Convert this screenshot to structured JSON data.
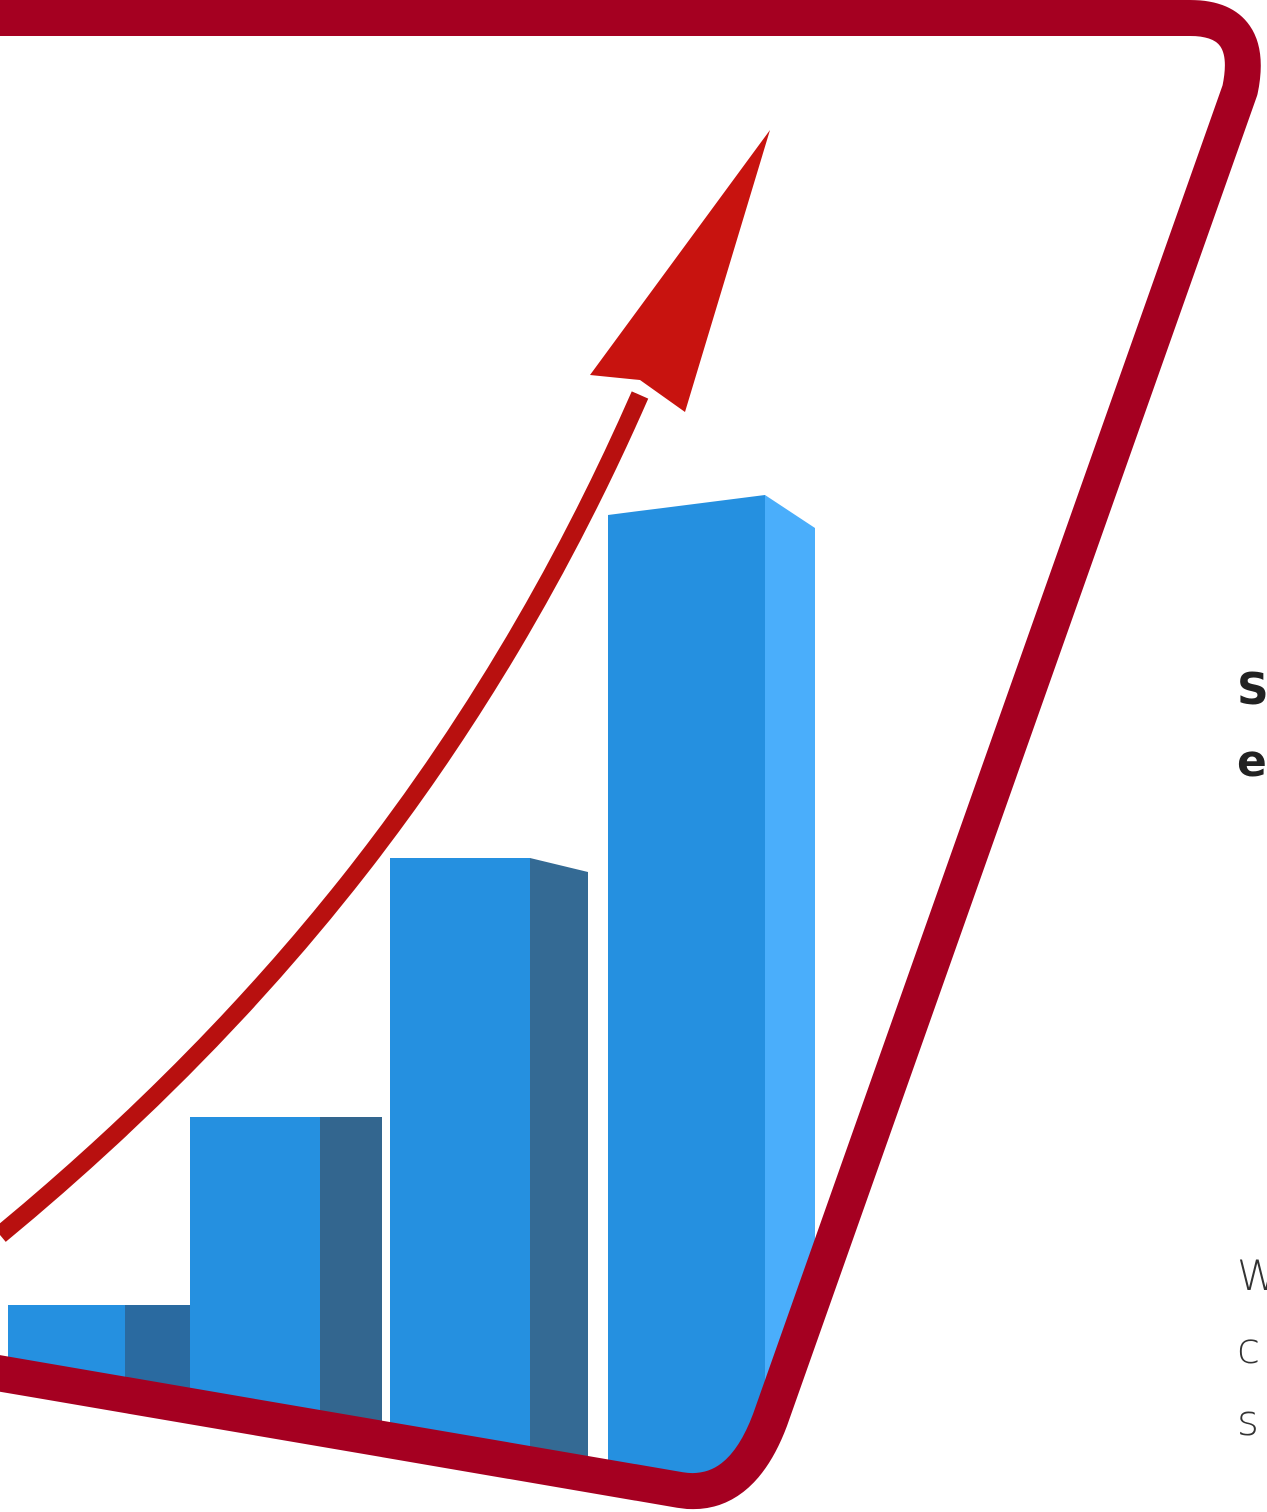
{
  "heading": {
    "lines": [
      "S",
      "e"
    ]
  },
  "body": {
    "lines": [
      "W",
      "c",
      "s"
    ]
  }
}
